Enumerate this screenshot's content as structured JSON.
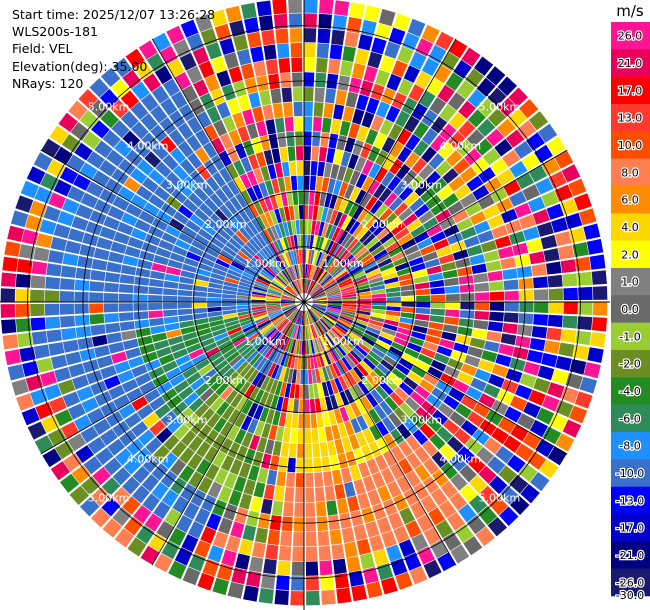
{
  "header": {
    "lines": [
      "Start time: 2025/12/07 13:26:28",
      "WLS200s-181",
      "Field: VEL",
      "Elevation(deg): 35.00",
      "NRays: 120"
    ]
  },
  "chart_data": {
    "type": "heatmap",
    "projection": "polar-ppi",
    "field": "VEL",
    "instrument": "WLS200s-181",
    "start_time": "2025/12/07 13:26:28",
    "elevation_deg": 35.0,
    "n_rays": 120,
    "range_max_km": 5.5,
    "range_rings_km": [
      1,
      2,
      3,
      4,
      5
    ],
    "ring_labels": [
      "1.00km",
      "2.00km",
      "3.00km",
      "4.00km",
      "5.00km"
    ],
    "spokes_deg": [
      0,
      30,
      60,
      90,
      120,
      150,
      180,
      210,
      240,
      270,
      300,
      330
    ],
    "colorbar": {
      "unit": "m/s",
      "tick_labels": [
        "26.0",
        "21.0",
        "17.0",
        "13.0",
        "10.0",
        "8.0",
        "6.0",
        "4.0",
        "2.0",
        "1.0",
        "0.0",
        "-1.0",
        "-2.0",
        "-4.0",
        "-6.0",
        "-8.0",
        "-10.0",
        "-13.0",
        "-17.0",
        "-21.0",
        "-26.0",
        "-30.0"
      ],
      "colors": [
        "#ff1493",
        "#e8005a",
        "#ff0000",
        "#ff3a2a",
        "#ff4d00",
        "#ff7f50",
        "#ff8c00",
        "#ffd700",
        "#ffff00",
        "#808080",
        "#696969",
        "#9acd32",
        "#6b8e23",
        "#228b22",
        "#2e8b57",
        "#1e90ff",
        "#3870cc",
        "#0000ff",
        "#0000cd",
        "#000080",
        "#191970"
      ]
    },
    "wind_pattern": {
      "near_range_km": 2.5,
      "coherent_regions": [
        {
          "az_from_deg": 205,
          "az_to_deg": 330,
          "range_from_km": 1.0,
          "range_to_km": 4.6,
          "velocity_ms": -11
        },
        {
          "az_from_deg": 225,
          "az_to_deg": 260,
          "range_from_km": 1.0,
          "range_to_km": 3.2,
          "velocity_ms": -7
        },
        {
          "az_from_deg": 195,
          "az_to_deg": 225,
          "range_from_km": 1.5,
          "range_to_km": 4.0,
          "velocity_ms": -3
        },
        {
          "az_from_deg": 150,
          "az_to_deg": 190,
          "range_from_km": 2.0,
          "range_to_km": 3.4,
          "velocity_ms": 3
        },
        {
          "az_from_deg": 140,
          "az_to_deg": 185,
          "range_from_km": 3.0,
          "range_to_km": 4.6,
          "velocity_ms": 7
        }
      ]
    }
  }
}
